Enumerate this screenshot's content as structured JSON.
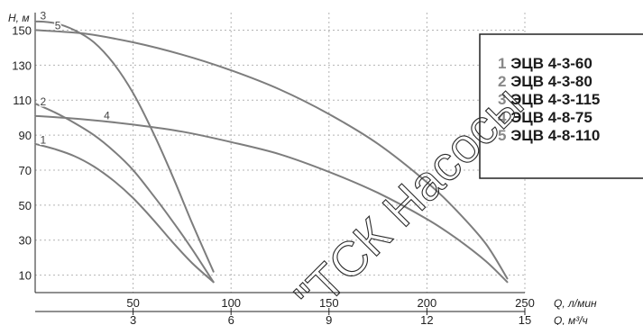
{
  "chart_data": {
    "type": "line",
    "ylabel": "H, м",
    "xlabel": "Q, л/мин",
    "x2label": "Q, м³/ч",
    "xlim": [
      0,
      250
    ],
    "ylim": [
      0,
      160
    ],
    "x_ticks": [
      50,
      100,
      150,
      200,
      250
    ],
    "x_tick_labels": [
      "50",
      "100",
      "150",
      "200",
      "250"
    ],
    "x2_ticks": [
      3,
      6,
      9,
      12,
      15
    ],
    "x2_tick_labels": [
      "3",
      "6",
      "9",
      "12",
      "15"
    ],
    "y_ticks": [
      10,
      30,
      50,
      70,
      90,
      110,
      130,
      150
    ],
    "y_tick_labels": [
      "10",
      "30",
      "50",
      "70",
      "90",
      "110",
      "130",
      "150"
    ],
    "legend_position": "right",
    "series": [
      {
        "id": "1",
        "label": "1",
        "name": "ЭЦВ 4-3-60",
        "x": [
          0,
          10,
          20,
          30,
          40,
          50,
          60,
          70,
          80,
          91
        ],
        "y": [
          85,
          82,
          78,
          72,
          64,
          54,
          42,
          29,
          17,
          6
        ]
      },
      {
        "id": "2",
        "label": "2",
        "name": "ЭЦВ 4-3-80",
        "x": [
          0,
          10,
          20,
          30,
          40,
          50,
          60,
          70,
          80,
          91
        ],
        "y": [
          108,
          103,
          97,
          90,
          81,
          70,
          56,
          41,
          25,
          6
        ]
      },
      {
        "id": "3",
        "label": "3",
        "name": "ЭЦВ 4-3-115",
        "x": [
          0,
          10,
          20,
          30,
          40,
          50,
          60,
          70,
          80,
          91
        ],
        "y": [
          155,
          154,
          150,
          143,
          131,
          114,
          92,
          67,
          40,
          12
        ]
      },
      {
        "id": "4",
        "label": "4",
        "name": "ЭЦВ 4-8-75",
        "x": [
          0,
          25,
          50,
          75,
          100,
          125,
          150,
          175,
          200,
          215,
          230,
          241
        ],
        "y": [
          101,
          99,
          96,
          92,
          86,
          79,
          69,
          57,
          42,
          31,
          18,
          6
        ]
      },
      {
        "id": "5",
        "label": "5",
        "name": "ЭЦВ 4-8-110",
        "x": [
          0,
          25,
          50,
          75,
          100,
          125,
          150,
          175,
          200,
          215,
          230,
          241
        ],
        "y": [
          150,
          148,
          143,
          136,
          127,
          116,
          102,
          85,
          63,
          47,
          28,
          8
        ]
      }
    ]
  },
  "watermark": "ТСК Насосы"
}
